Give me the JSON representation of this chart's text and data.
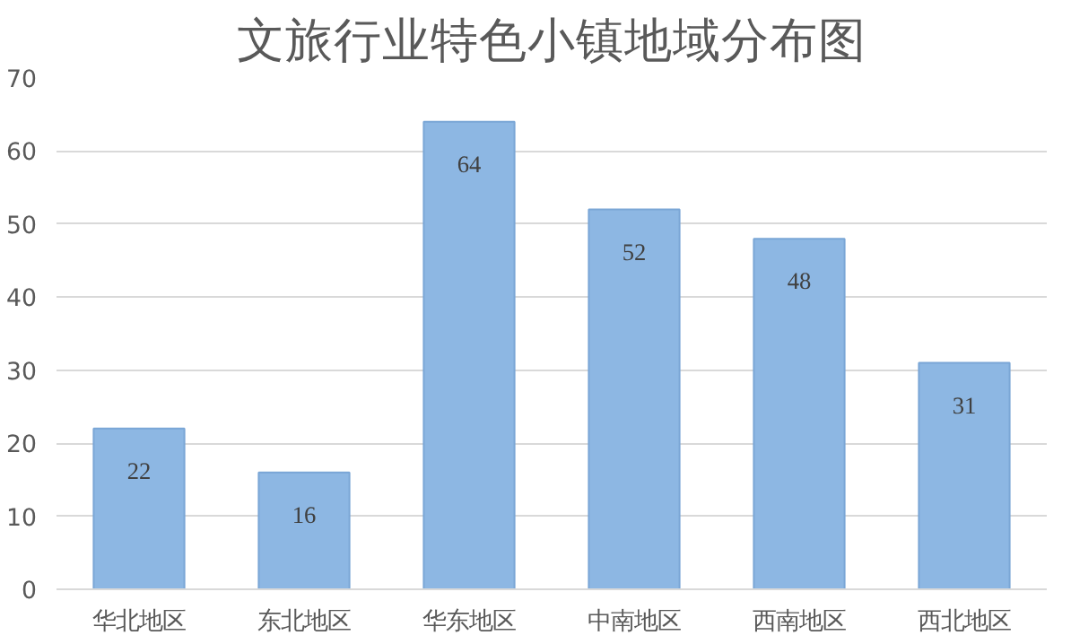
{
  "chart_data": {
    "type": "bar",
    "title": "文旅行业特色小镇地域分布图",
    "categories": [
      "华北地区",
      "东北地区",
      "华东地区",
      "中南地区",
      "西南地区",
      "西北地区"
    ],
    "values": [
      22,
      16,
      64,
      52,
      48,
      31
    ],
    "color": "#8db7e3",
    "ylim": [
      0,
      70
    ],
    "yticks": [
      0,
      10,
      20,
      30,
      40,
      50,
      60,
      70
    ],
    "grid": "y",
    "data_labels": true
  }
}
